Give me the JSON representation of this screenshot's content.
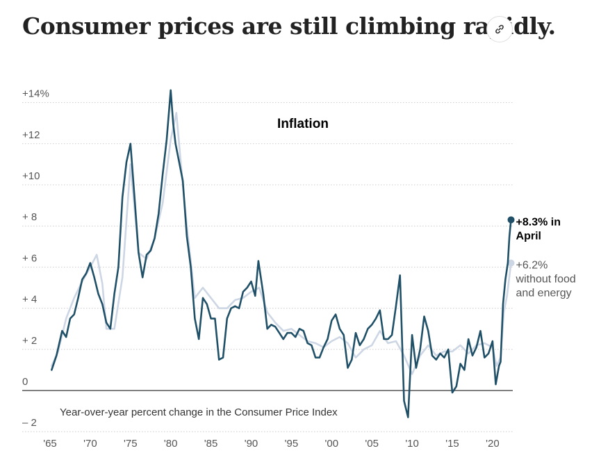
{
  "headline": "Consumer prices are still climbing rapidly.",
  "link_icon": "link-icon",
  "chart_data": {
    "type": "line",
    "title": "Inflation",
    "note": "Year-over-year percent change in the Consumer Price Index",
    "ylim": [
      -2.5,
      15
    ],
    "xlim": [
      1965,
      2022.5
    ],
    "y_ticks": [
      {
        "value": 14,
        "label": "+14%"
      },
      {
        "value": 12,
        "label": "+12"
      },
      {
        "value": 10,
        "label": "+10"
      },
      {
        "value": 8,
        "label": "+ 8"
      },
      {
        "value": 6,
        "label": "+ 6"
      },
      {
        "value": 4,
        "label": "+ 4"
      },
      {
        "value": 2,
        "label": "+ 2"
      },
      {
        "value": 0,
        "label": "0"
      },
      {
        "value": -2,
        "label": "– 2"
      }
    ],
    "x_ticks": [
      {
        "value": 1965,
        "label": "'65"
      },
      {
        "value": 1970,
        "label": "'70"
      },
      {
        "value": 1975,
        "label": "'75"
      },
      {
        "value": 1980,
        "label": "'80"
      },
      {
        "value": 1985,
        "label": "'85"
      },
      {
        "value": 1990,
        "label": "'90"
      },
      {
        "value": 1995,
        "label": "'95"
      },
      {
        "value": 2000,
        "label": "'00"
      },
      {
        "value": 2005,
        "label": "'05"
      },
      {
        "value": 2010,
        "label": "'10"
      },
      {
        "value": 2015,
        "label": "'15"
      },
      {
        "value": 2020,
        "label": "'20"
      }
    ],
    "grid": "horizontal dotted",
    "colors": {
      "headline": "#1f5068",
      "core": "#cdd6e4",
      "zero": "#333333"
    },
    "series": [
      {
        "id": "headline",
        "x": [
          1965.2,
          1965.8,
          1966.5,
          1967.0,
          1967.5,
          1968.0,
          1968.5,
          1969.0,
          1969.5,
          1970.0,
          1970.5,
          1971.0,
          1971.5,
          1972.0,
          1972.5,
          1973.0,
          1973.5,
          1974.0,
          1974.5,
          1975.0,
          1975.5,
          1976.0,
          1976.5,
          1977.0,
          1977.5,
          1978.0,
          1978.5,
          1979.0,
          1979.5,
          1980.0,
          1980.3,
          1980.6,
          1981.0,
          1981.5,
          1982.0,
          1982.5,
          1983.0,
          1983.5,
          1984.0,
          1984.5,
          1985.0,
          1985.5,
          1986.0,
          1986.5,
          1987.0,
          1987.5,
          1988.0,
          1988.5,
          1989.0,
          1989.5,
          1990.0,
          1990.5,
          1990.9,
          1991.5,
          1992.0,
          1992.5,
          1993.0,
          1993.5,
          1994.0,
          1994.5,
          1995.0,
          1995.5,
          1996.0,
          1996.5,
          1997.0,
          1997.5,
          1998.0,
          1998.5,
          1999.0,
          1999.5,
          2000.0,
          2000.5,
          2001.0,
          2001.5,
          2002.0,
          2002.5,
          2003.0,
          2003.5,
          2004.0,
          2004.5,
          2005.0,
          2005.5,
          2006.0,
          2006.5,
          2007.0,
          2007.5,
          2008.0,
          2008.5,
          2009.0,
          2009.5,
          2010.0,
          2010.5,
          2011.0,
          2011.5,
          2012.0,
          2012.5,
          2013.0,
          2013.5,
          2014.0,
          2014.5,
          2015.0,
          2015.5,
          2016.0,
          2016.5,
          2017.0,
          2017.5,
          2018.0,
          2018.5,
          2019.0,
          2019.5,
          2020.0,
          2020.4,
          2020.8,
          2021.0,
          2021.3,
          2021.6,
          2021.9,
          2022.1,
          2022.3
        ],
        "values": [
          1.0,
          1.7,
          2.9,
          2.6,
          3.5,
          3.7,
          4.5,
          5.4,
          5.7,
          6.2,
          5.5,
          4.7,
          4.2,
          3.3,
          3.0,
          4.7,
          6.0,
          9.4,
          11.1,
          12.0,
          9.4,
          6.7,
          5.5,
          6.6,
          6.8,
          7.4,
          8.6,
          10.5,
          12.2,
          14.6,
          13.0,
          12.0,
          11.2,
          10.2,
          7.5,
          6.0,
          3.5,
          2.5,
          4.5,
          4.2,
          3.5,
          3.5,
          1.5,
          1.6,
          3.5,
          4.0,
          4.1,
          4.0,
          4.8,
          5.0,
          5.3,
          4.6,
          6.3,
          4.7,
          3.0,
          3.2,
          3.1,
          2.8,
          2.5,
          2.8,
          2.8,
          2.6,
          3.0,
          2.9,
          2.3,
          2.2,
          1.6,
          1.6,
          2.1,
          2.5,
          3.4,
          3.7,
          3.0,
          2.7,
          1.1,
          1.5,
          2.8,
          2.2,
          2.5,
          3.0,
          3.2,
          3.5,
          3.9,
          2.5,
          2.5,
          2.7,
          4.1,
          5.6,
          -0.5,
          -1.3,
          2.7,
          1.1,
          2.0,
          3.6,
          2.9,
          1.7,
          1.5,
          1.8,
          1.6,
          2.0,
          -0.1,
          0.2,
          1.3,
          1.0,
          2.5,
          1.7,
          2.1,
          2.9,
          1.6,
          1.8,
          2.4,
          0.3,
          1.2,
          1.4,
          4.2,
          5.4,
          6.2,
          7.5,
          8.3
        ]
      },
      {
        "id": "core",
        "x": [
          1965.2,
          1966.0,
          1967.0,
          1968.0,
          1969.0,
          1970.0,
          1970.8,
          1971.5,
          1972.0,
          1973.0,
          1974.0,
          1975.0,
          1976.0,
          1977.0,
          1978.0,
          1979.0,
          1980.0,
          1980.7,
          1981.5,
          1982.0,
          1983.0,
          1984.0,
          1985.0,
          1986.0,
          1987.0,
          1988.0,
          1989.0,
          1990.0,
          1991.0,
          1992.0,
          1993.0,
          1994.0,
          1995.0,
          1996.0,
          1997.0,
          1998.0,
          1999.0,
          2000.0,
          2001.0,
          2002.0,
          2003.0,
          2004.0,
          2005.0,
          2006.0,
          2007.0,
          2008.0,
          2009.0,
          2010.0,
          2011.0,
          2012.0,
          2013.0,
          2014.0,
          2015.0,
          2016.0,
          2017.0,
          2018.0,
          2019.0,
          2020.0,
          2020.5,
          2021.0,
          2021.4,
          2021.8,
          2022.3
        ],
        "values": [
          1.2,
          1.9,
          3.5,
          4.5,
          5.3,
          6.0,
          6.6,
          5.2,
          3.0,
          3.0,
          5.5,
          11.0,
          6.7,
          6.4,
          7.4,
          9.1,
          12.2,
          13.5,
          10.0,
          8.0,
          4.5,
          5.0,
          4.5,
          4.0,
          4.0,
          4.4,
          4.5,
          4.8,
          5.0,
          3.8,
          3.3,
          2.9,
          3.0,
          2.7,
          2.4,
          2.3,
          2.1,
          2.4,
          2.6,
          2.3,
          1.6,
          2.0,
          2.2,
          2.9,
          2.3,
          2.4,
          1.7,
          0.8,
          1.7,
          2.2,
          1.7,
          1.9,
          1.9,
          2.2,
          1.8,
          2.2,
          2.3,
          2.1,
          1.2,
          1.6,
          3.8,
          4.6,
          6.2
        ]
      }
    ],
    "annotations": [
      {
        "series": "headline",
        "line1": "+8.3% in",
        "line2": "April"
      },
      {
        "series": "core",
        "line1": "+6.2%",
        "line2": "without food",
        "line3": "and energy"
      }
    ]
  }
}
